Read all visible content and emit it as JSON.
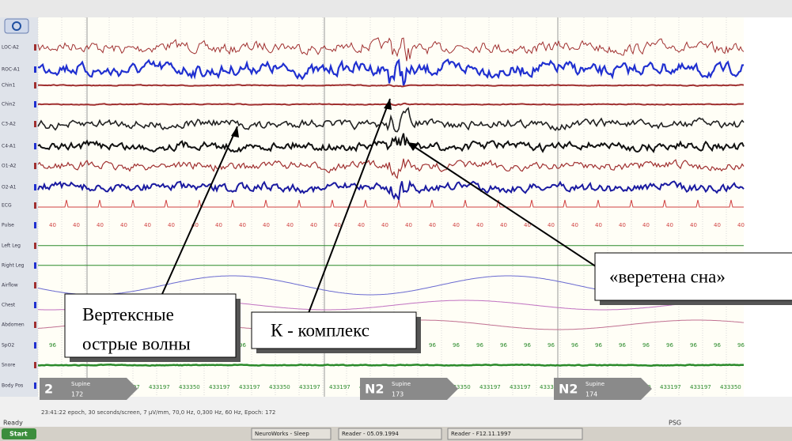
{
  "window": {
    "status_left": "Ready",
    "status_right": "PSG"
  },
  "channels": [
    "LOC-A2",
    "ROC-A1",
    "Chin1",
    "Chin2",
    "C3-A2",
    "C4-A1",
    "O1-A2",
    "O2-A1",
    "ECG",
    "Pulse",
    "Left Leg",
    "Right Leg",
    "Airflow",
    "Chest",
    "Abdomen",
    "SpO2",
    "Snore",
    "Body Pos"
  ],
  "pulse_readout": "40",
  "spo2_readout": "96",
  "body_position_codes": [
    "433197",
    "433350"
  ],
  "stages": [
    {
      "stage": "2",
      "position": "Supine",
      "epoch": "172"
    },
    {
      "stage": "N2",
      "position": "Supine",
      "epoch": "173"
    },
    {
      "stage": "N2",
      "position": "Supine",
      "epoch": "174"
    }
  ],
  "info_line": "23:41:22 epoch, 30 seconds/screen, 7 µV/mm, 70,0 Hz, 0,300 Hz, 60 Hz, Epoch: 172",
  "annotations": {
    "vertex_waves": [
      "Вертексные",
      "острые  волны"
    ],
    "k_complex": "К - комплекс",
    "sleep_spindles": "«веретена сна»"
  },
  "taskbar": {
    "start": "Start",
    "items": [
      "NeuroWorks - Sleep",
      "Reader - 05.09.1994",
      "Reader - F12.11.1997"
    ]
  }
}
